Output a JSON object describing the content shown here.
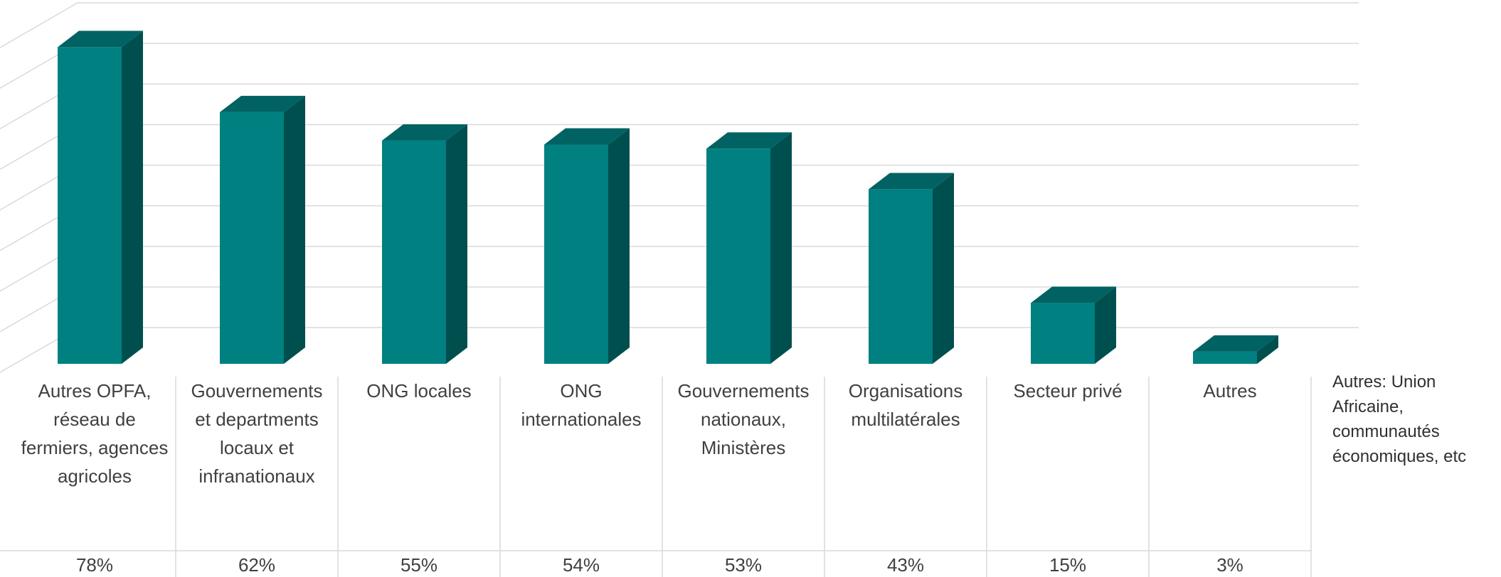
{
  "chart_data": {
    "type": "bar3d",
    "categories": [
      "Autres OPFA, réseau de fermiers, agences agricoles",
      "Gouvernements et departments locaux et infranationaux",
      "ONG locales",
      "ONG internationales",
      "Gouvernements nationaux, Ministères",
      "Organisations multilatérales",
      "Secteur privé",
      "Autres"
    ],
    "values": [
      78,
      62,
      55,
      54,
      53,
      43,
      15,
      3
    ],
    "value_labels": [
      "78%",
      "62%",
      "55%",
      "54%",
      "53%",
      "43%",
      "15%",
      "3%"
    ],
    "color": "#008080",
    "ylim": [
      0,
      80
    ],
    "yticks": [
      0,
      10,
      20,
      30,
      40,
      50,
      60,
      70,
      80
    ],
    "grid": true,
    "annotation": "Autres: Union Africaine, communautés économiques, etc"
  }
}
